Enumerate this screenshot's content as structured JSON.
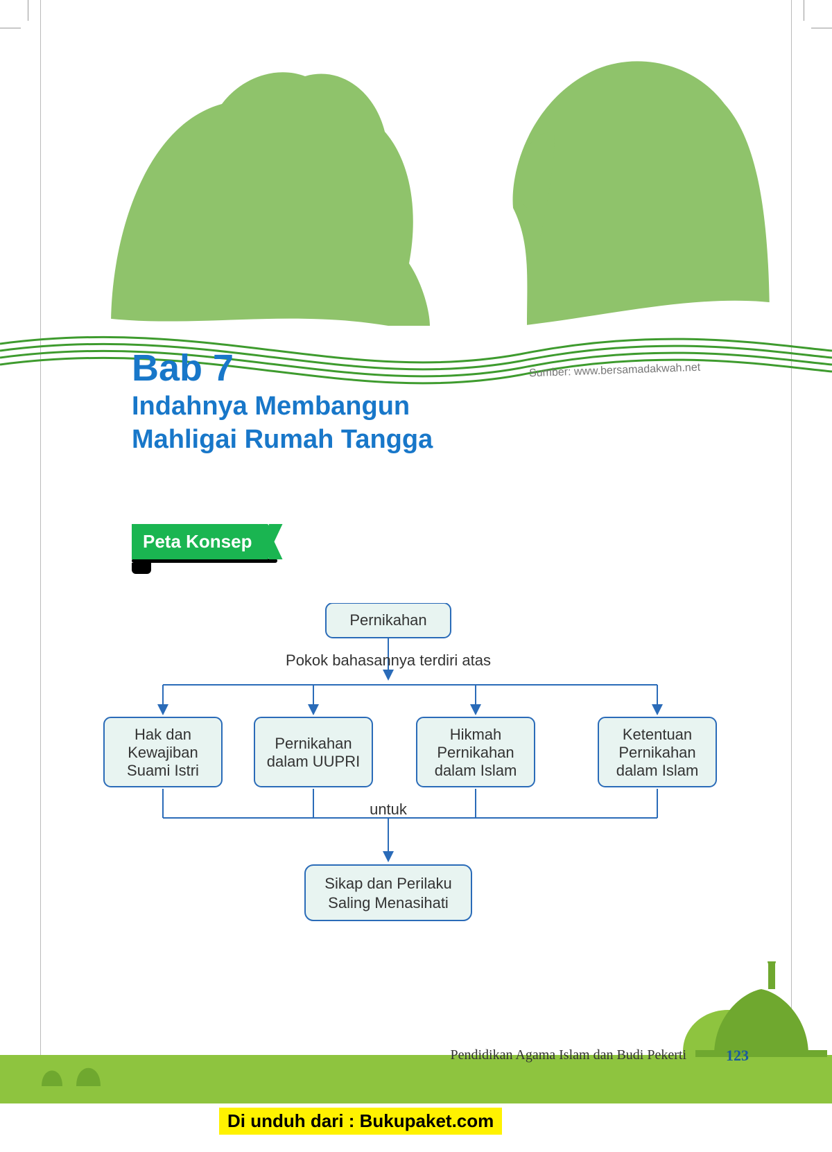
{
  "colors": {
    "title_blue": "#1877c9",
    "badge_green": "#1ab551",
    "silhouette_green": "#8fc36b",
    "wave_green": "#3e9b2e",
    "node_border": "#2a6bb8",
    "node_fill": "#e8f4f1",
    "footer_green": "#8ec43f",
    "footer_dark": "#6fa82f",
    "download_bg": "#fff200"
  },
  "header": {
    "bab": "Bab 7",
    "subtitle_line1": "Indahnya Membangun",
    "subtitle_line2": "Mahligai Rumah Tangga",
    "source": "Sumber: www.bersamadakwah.net"
  },
  "badge": {
    "label": "Peta Konsep"
  },
  "concept_map": {
    "root": "Pernikahan",
    "connector1": "Pokok bahasannya terdiri atas",
    "children": [
      {
        "lines": [
          "Hak dan",
          "Kewajiban",
          "Suami Istri"
        ]
      },
      {
        "lines": [
          "Pernikahan",
          "dalam UUPRI"
        ]
      },
      {
        "lines": [
          "Hikmah",
          "Pernikahan",
          "dalam Islam"
        ]
      },
      {
        "lines": [
          "Ketentuan",
          "Pernikahan",
          "dalam Islam"
        ]
      }
    ],
    "connector2": "untuk",
    "result": {
      "lines": [
        "Sikap dan Perilaku",
        "Saling Menasihati"
      ]
    }
  },
  "footer": {
    "book_title": "Pendidikan Agama Islam dan Budi Pekerti",
    "page_number": "123",
    "download": "Di unduh dari : Bukupaket.com"
  }
}
